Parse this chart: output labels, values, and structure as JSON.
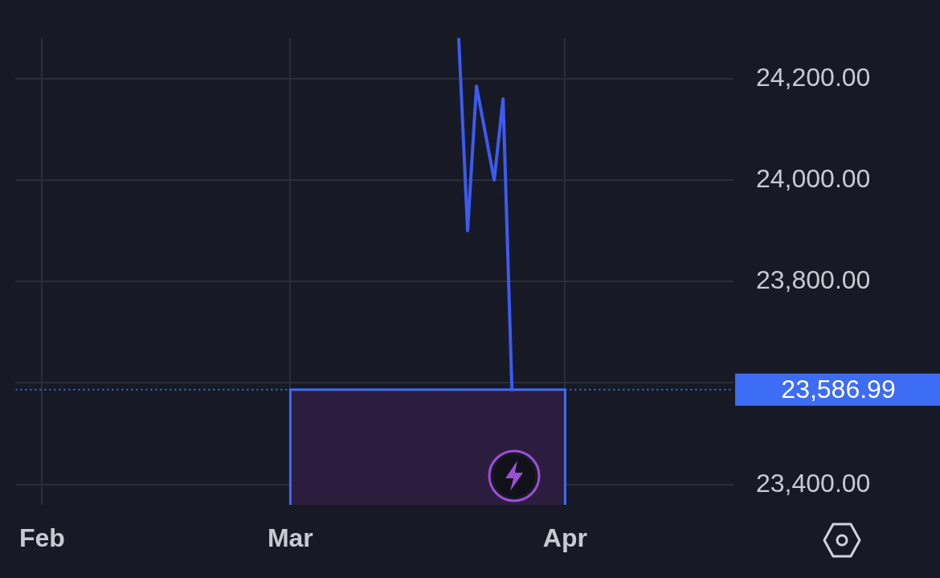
{
  "chart_data": {
    "type": "line",
    "x": [
      "--03-20",
      "--03-21",
      "--03-22",
      "--03-24",
      "--03-25",
      "--03-26"
    ],
    "series": [
      {
        "color": "#3d5af1",
        "values": [
          24280,
          23900,
          24185,
          24000,
          24160,
          23586.99
        ]
      }
    ],
    "xlim": [
      "--01-29",
      "--04-20"
    ],
    "xticks": [
      {
        "value": "--02-01",
        "label": "Feb"
      },
      {
        "value": "--03-01",
        "label": "Mar"
      },
      {
        "value": "--04-01",
        "label": "Apr"
      }
    ],
    "ylim": [
      23360,
      24280
    ],
    "yticks": [
      {
        "value": 23400,
        "label": "23,400.00"
      },
      {
        "value": 23600,
        "label": null
      },
      {
        "value": 23800,
        "label": "23,800.00"
      },
      {
        "value": 24000,
        "label": "24,000.00"
      },
      {
        "value": 24200,
        "label": "24,200.00"
      }
    ],
    "ref_lines": [
      {
        "axis": "y",
        "value": 23586.99,
        "label": "23,586.99",
        "color": "#3d6cf5",
        "line_style": "dotted"
      }
    ],
    "bands": [
      {
        "axis": "x",
        "from": "--03-01",
        "to": "--04-01",
        "color": "#2c1d3e"
      }
    ],
    "grid": true,
    "legend": false,
    "marker": "none",
    "line_style": "solid"
  }
}
